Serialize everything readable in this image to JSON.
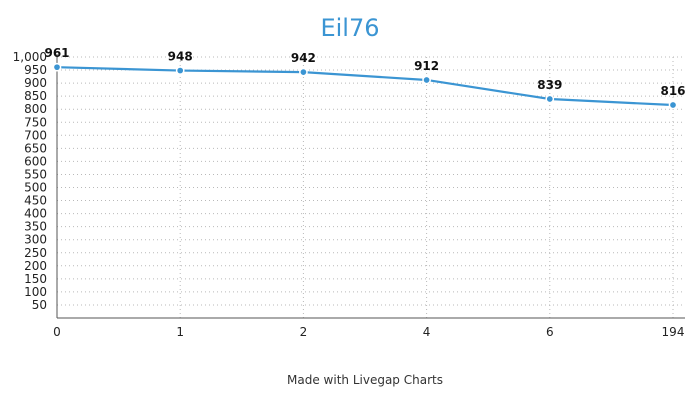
{
  "chart_data": {
    "type": "line",
    "title": "Eil76",
    "xlabel": "",
    "ylabel": "",
    "x": [
      "0",
      "1",
      "2",
      "4",
      "6",
      "194"
    ],
    "series": [
      {
        "values": [
          961,
          948,
          942,
          912,
          839,
          816
        ]
      }
    ],
    "y_ticks": [
      "50",
      "100",
      "150",
      "200",
      "250",
      "300",
      "350",
      "400",
      "450",
      "500",
      "550",
      "600",
      "650",
      "700",
      "750",
      "800",
      "850",
      "900",
      "950",
      "1,000"
    ],
    "ylim": [
      0,
      1000
    ],
    "grid": true,
    "legend": "none",
    "colors": {
      "accent": "#3b95d3",
      "grid": "#b9b9b9",
      "axis": "#555555",
      "text": "#222222"
    }
  },
  "footer": {
    "text": "Made with Livegap Charts"
  }
}
